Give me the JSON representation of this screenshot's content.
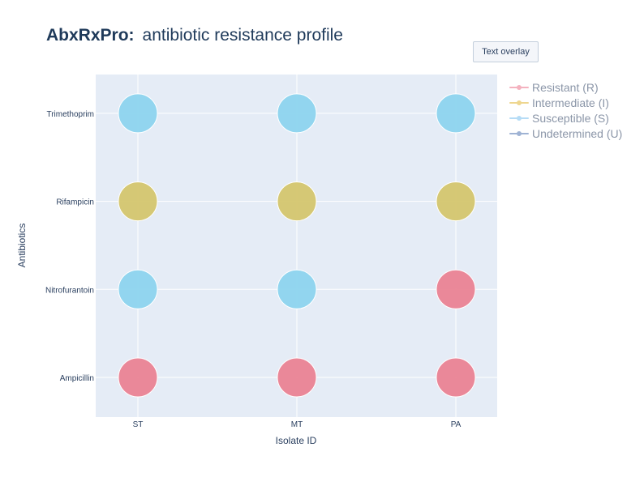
{
  "title": {
    "brand": "AbxRxPro:",
    "text": "antibiotic resistance profile"
  },
  "overlay_button": {
    "label": "Text overlay"
  },
  "chart_data": {
    "type": "scatter",
    "xlabel": "Isolate ID",
    "ylabel": "Antibiotics",
    "categories": [
      "ST",
      "MT",
      "PA"
    ],
    "y_categories": [
      "Ampicillin",
      "Nitrofurantoin",
      "Rifampicin",
      "Trimethoprim"
    ],
    "grid": true,
    "legend_position": "right",
    "plot_bg": "#e5ecf6",
    "series": [
      {
        "name": "Resistant (R)",
        "color": "#ea8393",
        "legend_color": "#f4b2bf",
        "points": [
          {
            "x": "ST",
            "y": "Ampicillin"
          },
          {
            "x": "MT",
            "y": "Ampicillin"
          },
          {
            "x": "PA",
            "y": "Ampicillin"
          },
          {
            "x": "PA",
            "y": "Nitrofurantoin"
          }
        ]
      },
      {
        "name": "Intermediate (I)",
        "color": "#d4c66e",
        "legend_color": "#eed68f",
        "points": [
          {
            "x": "ST",
            "y": "Rifampicin"
          },
          {
            "x": "MT",
            "y": "Rifampicin"
          },
          {
            "x": "PA",
            "y": "Rifampicin"
          }
        ]
      },
      {
        "name": "Susceptible (S)",
        "color": "#8dd4ee",
        "legend_color": "#b6dcf6",
        "points": [
          {
            "x": "ST",
            "y": "Nitrofurantoin"
          },
          {
            "x": "MT",
            "y": "Nitrofurantoin"
          },
          {
            "x": "ST",
            "y": "Trimethoprim"
          },
          {
            "x": "MT",
            "y": "Trimethoprim"
          },
          {
            "x": "PA",
            "y": "Trimethoprim"
          }
        ]
      },
      {
        "name": "Undetermined (U)",
        "color": "#9fb3d4",
        "legend_color": "#9fb3d4",
        "points": []
      }
    ]
  }
}
